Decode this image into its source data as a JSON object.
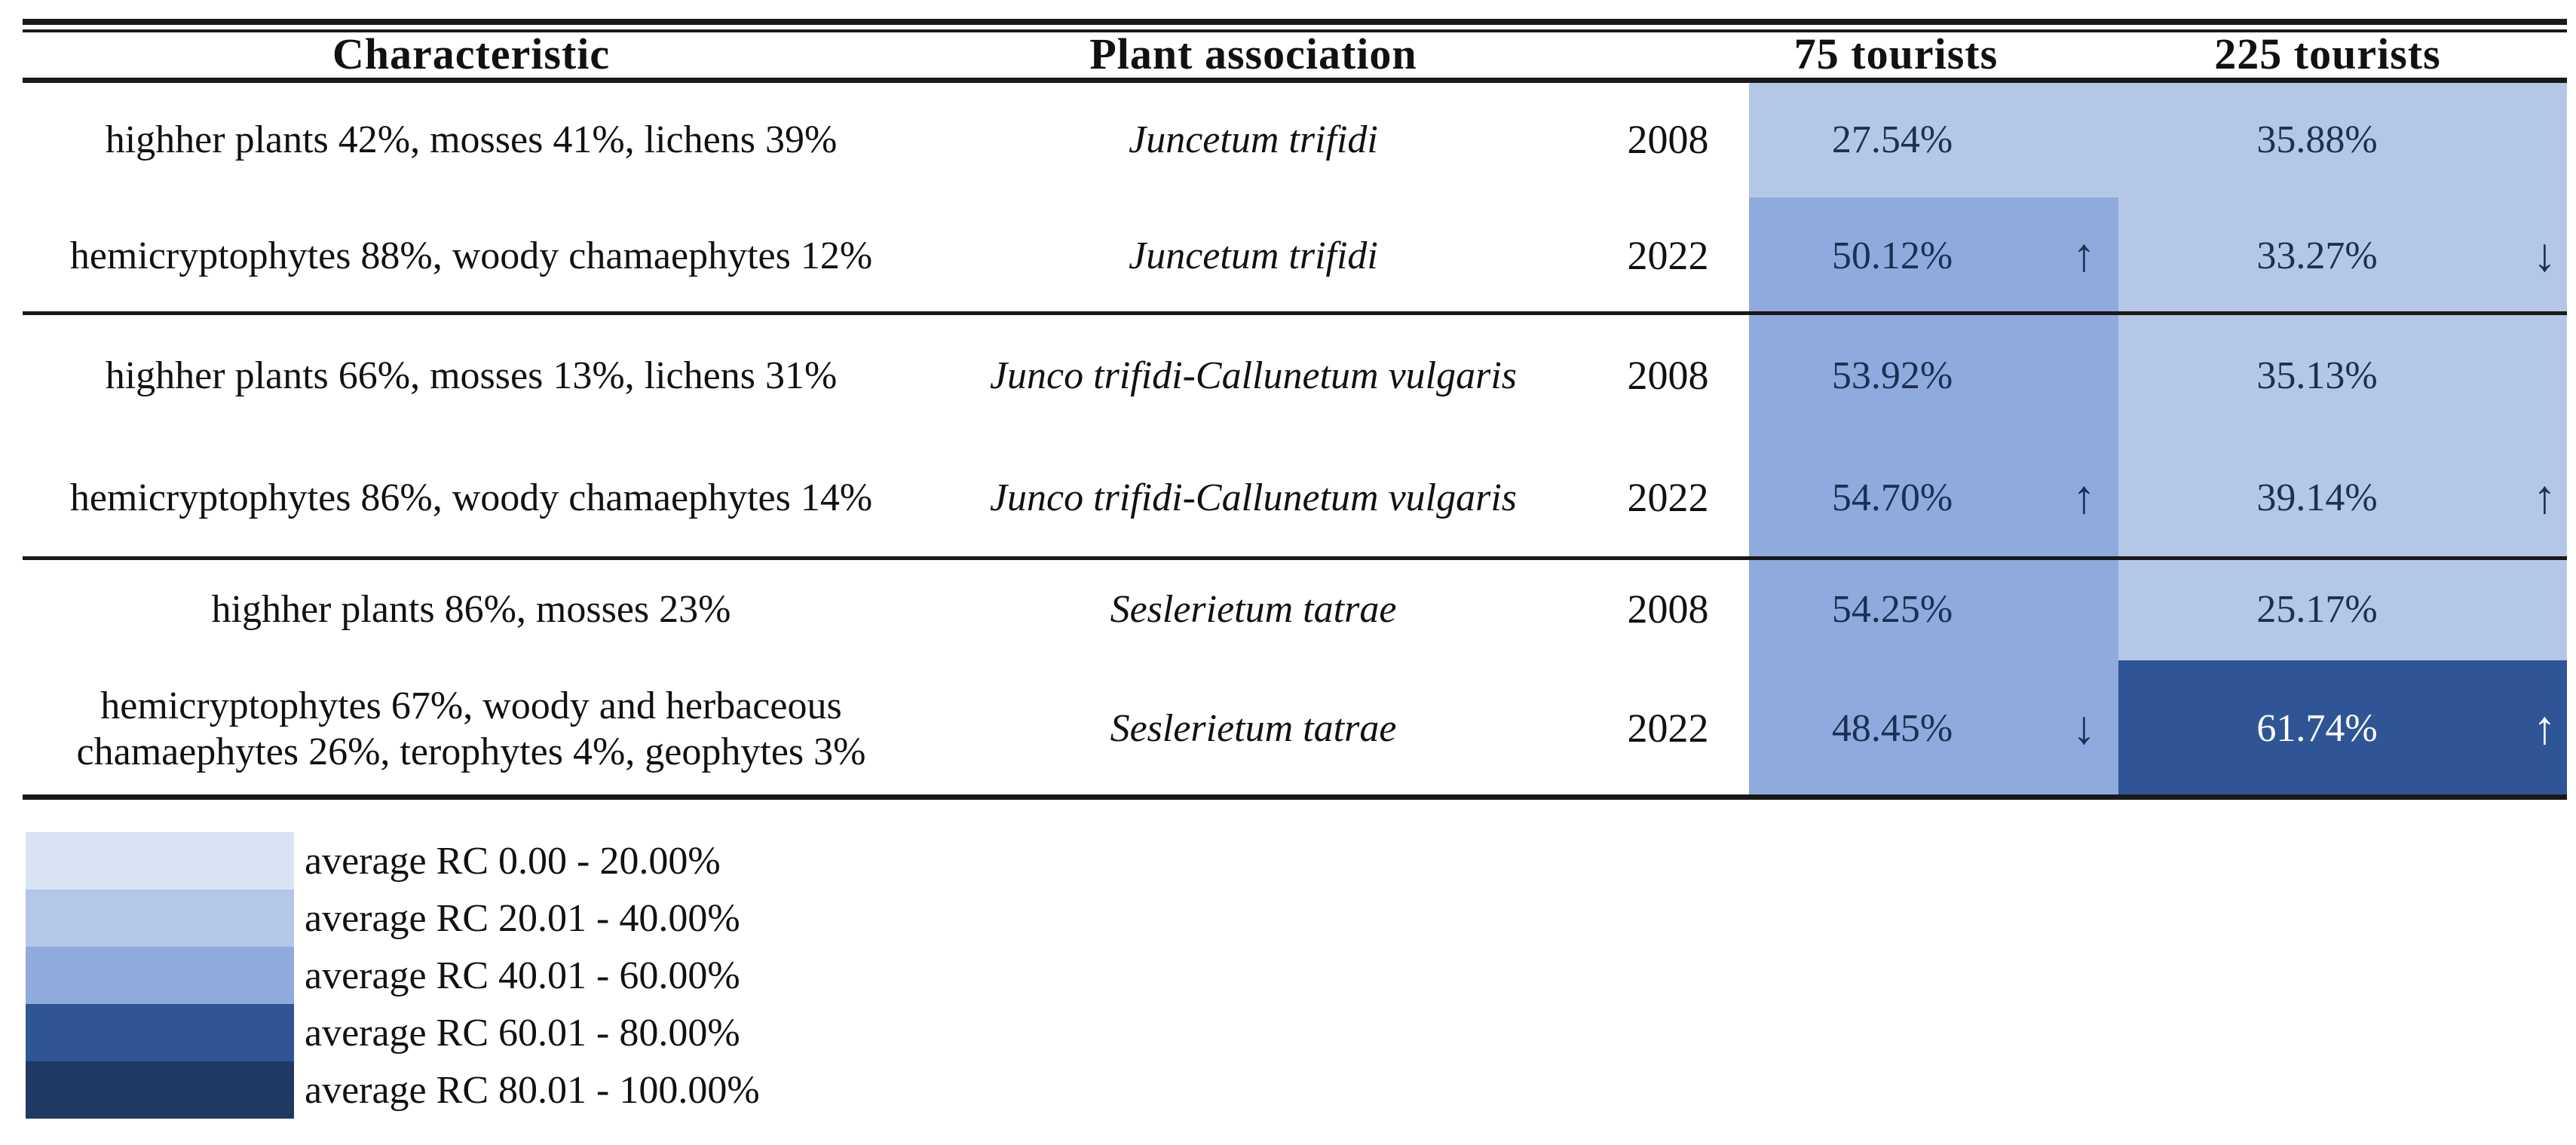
{
  "colors": {
    "rc_0_20": "#dae3f3",
    "rc_20_40": "#b4c7e7",
    "rc_40_60": "#8faadc",
    "rc_60_80": "#2f5597",
    "rc_80_100": "#1f3864",
    "value_text": "#1c2f54",
    "value_text_light": "#ffffff",
    "rule_line": "#191919"
  },
  "table": {
    "header": {
      "characteristic": "Characteristic",
      "plant": "Plant association",
      "year": "",
      "t75": "75 tourists",
      "t225": "225 tourists"
    },
    "rows": [
      {
        "characteristic": "highher plants 42%, mosses 41%, lichens 39%",
        "plant": "Juncetum trifidi",
        "year": "2008",
        "t75": {
          "value": "27.54%",
          "arrow": "",
          "color": "#b4c7e7",
          "tone": "dark"
        },
        "t225": {
          "value": "35.88%",
          "arrow": "",
          "color": "#b4c7e7",
          "tone": "dark"
        }
      },
      {
        "characteristic": "hemicryptophytes 88%, woody chamaephytes 12%",
        "plant": "Juncetum trifidi",
        "year": "2022",
        "t75": {
          "value": "50.12%",
          "arrow": "↑",
          "color": "#8faadc",
          "tone": "dark"
        },
        "t225": {
          "value": "33.27%",
          "arrow": "↓",
          "color": "#b4c7e7",
          "tone": "dark"
        }
      },
      {
        "characteristic": "highher plants 66%, mosses 13%, lichens 31%",
        "plant": "Junco trifidi-Callunetum vulgaris",
        "year": "2008",
        "t75": {
          "value": "53.92%",
          "arrow": "",
          "color": "#8faadc",
          "tone": "dark"
        },
        "t225": {
          "value": "35.13%",
          "arrow": "",
          "color": "#b4c7e7",
          "tone": "dark"
        }
      },
      {
        "characteristic": "hemicryptophytes 86%, woody chamaephytes 14%",
        "plant": "Junco trifidi-Callunetum vulgaris",
        "year": "2022",
        "t75": {
          "value": "54.70%",
          "arrow": "↑",
          "color": "#8faadc",
          "tone": "dark"
        },
        "t225": {
          "value": "39.14%",
          "arrow": "↑",
          "color": "#b4c7e7",
          "tone": "dark"
        }
      },
      {
        "characteristic": "highher plants 86%, mosses 23%",
        "plant": "Seslerietum tatrae",
        "year": "2008",
        "t75": {
          "value": "54.25%",
          "arrow": "",
          "color": "#8faadc",
          "tone": "dark"
        },
        "t225": {
          "value": "25.17%",
          "arrow": "",
          "color": "#b4c7e7",
          "tone": "dark"
        }
      },
      {
        "characteristic": "hemicryptophytes 67%, woody and herbaceous\nchamaephytes 26%, terophytes 4%, geophytes 3%",
        "plant": "Seslerietum tatrae",
        "year": "2022",
        "t75": {
          "value": "48.45%",
          "arrow": "↓",
          "color": "#8faadc",
          "tone": "dark"
        },
        "t225": {
          "value": "61.74%",
          "arrow": "↑",
          "color": "#2f5597",
          "tone": "light"
        }
      }
    ]
  },
  "legend": {
    "items": [
      {
        "label": "average RC 0.00 - 20.00%",
        "color": "#dae3f3"
      },
      {
        "label": "average RC 20.01 - 40.00%",
        "color": "#b4c7e7"
      },
      {
        "label": "average RC 40.01 - 60.00%",
        "color": "#8faadc"
      },
      {
        "label": "average RC 60.01 - 80.00%",
        "color": "#2f5597"
      },
      {
        "label": "average RC 80.01 - 100.00%",
        "color": "#1f3864"
      }
    ]
  }
}
